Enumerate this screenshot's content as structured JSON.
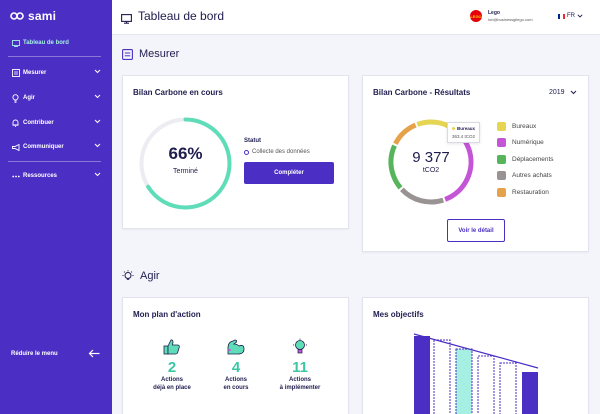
{
  "app": {
    "brand": "sami"
  },
  "sidebar": {
    "items": [
      {
        "label": "Tableau de bord",
        "icon": "monitor-icon",
        "active": true
      },
      {
        "label": "Mesurer",
        "icon": "mesurer-icon"
      },
      {
        "label": "Agir",
        "icon": "lightbulb-icon"
      },
      {
        "label": "Contribuer",
        "icon": "bell-icon"
      },
      {
        "label": "Communiquer",
        "icon": "megaphone-icon"
      },
      {
        "label": "Ressources",
        "icon": "dots-icon"
      }
    ],
    "collapse_label": "Réduire le menu"
  },
  "header": {
    "title": "Tableau de bord",
    "company_name": "Lego",
    "company_email": "lori@businessgilego.com",
    "company_logo_text": "LEGO",
    "language": "FR"
  },
  "sections": {
    "mesurer": "Mesurer",
    "agir": "Agir"
  },
  "bilan_en_cours": {
    "title": "Bilan Carbone en cours",
    "percent": "66%",
    "percent_value": 66,
    "percent_label": "Terminé",
    "statut_label": "Statut",
    "statut_value": "Collecte des données",
    "button": "Compléter"
  },
  "resultats": {
    "title": "Bilan Carbone - Résultats",
    "year": "2019",
    "total": "9 377",
    "unit": "tCO2",
    "tooltip": {
      "name": "Bureaux",
      "value": "363.4 tCO2"
    },
    "button": "Voir le détail",
    "legend": [
      {
        "label": "Bureaux",
        "color": "#e6d453"
      },
      {
        "label": "Numérique",
        "color": "#c455d6"
      },
      {
        "label": "Déplacements",
        "color": "#56b55a"
      },
      {
        "label": "Autres achats",
        "color": "#9a9393"
      },
      {
        "label": "Restauration",
        "color": "#e6a24a"
      }
    ]
  },
  "plan_action": {
    "title": "Mon plan d'action",
    "items": [
      {
        "value": "2",
        "line1": "Actions",
        "line2": "déjà en place",
        "icon": "thumbs-up-icon"
      },
      {
        "value": "4",
        "line1": "Actions",
        "line2": "en cours",
        "icon": "flexed-arm-icon"
      },
      {
        "value": "11",
        "line1": "Actions",
        "line2": "à implémenter",
        "icon": "lightbulb-icon"
      }
    ]
  },
  "objectifs": {
    "title": "Mes objectifs"
  }
}
